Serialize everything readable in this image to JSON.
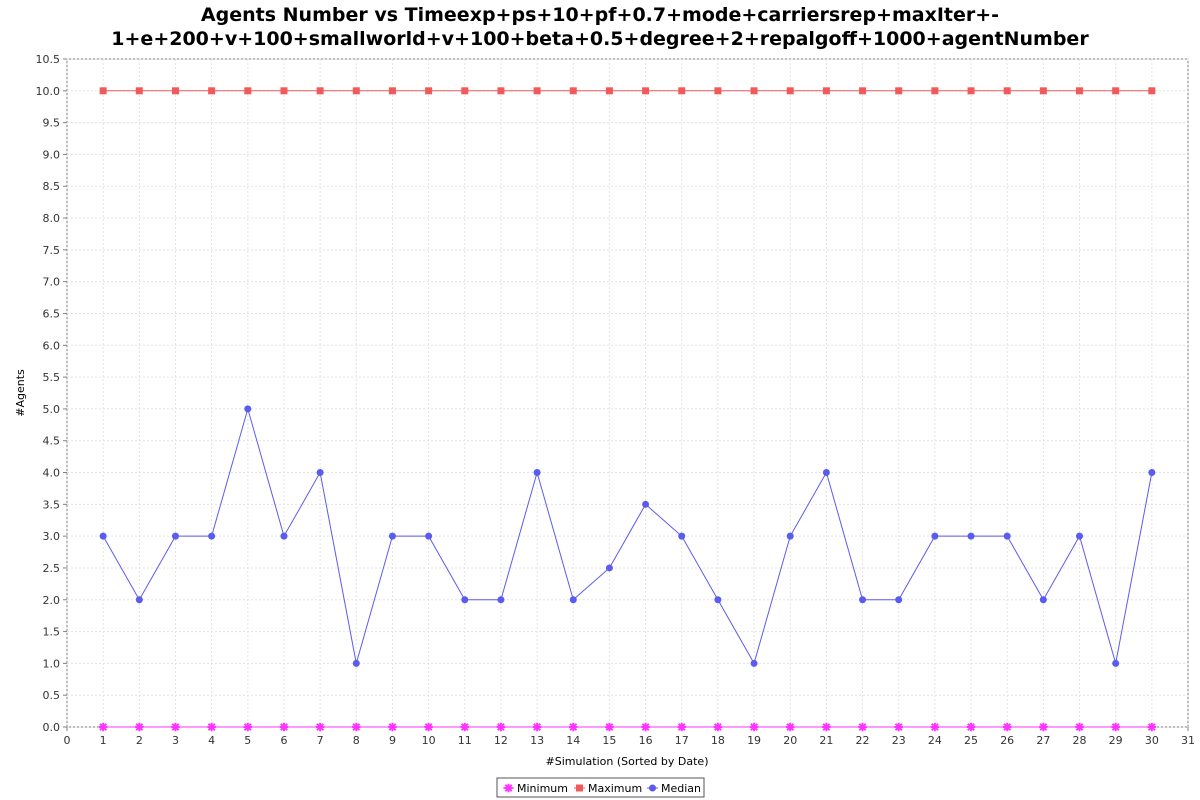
{
  "chart_data": {
    "type": "line",
    "title_line1": "Agents Number vs Timeexp+ps+10+pf+0.7+mode+carriersrep+maxIter+-",
    "title_line2": "1+e+200+v+100+smallworld+v+100+beta+0.5+degree+2+repalgoff+1000+agentNumber",
    "xlabel": "#Simulation (Sorted by Date)",
    "ylabel": "#Agents",
    "xlim": [
      0,
      31
    ],
    "ylim": [
      0,
      10.5
    ],
    "x_ticks": [
      0,
      1,
      2,
      3,
      4,
      5,
      6,
      7,
      8,
      9,
      10,
      11,
      12,
      13,
      14,
      15,
      16,
      17,
      18,
      19,
      20,
      21,
      22,
      23,
      24,
      25,
      26,
      27,
      28,
      29,
      30,
      31
    ],
    "y_ticks": [
      0.0,
      0.5,
      1.0,
      1.5,
      2.0,
      2.5,
      3.0,
      3.5,
      4.0,
      4.5,
      5.0,
      5.5,
      6.0,
      6.5,
      7.0,
      7.5,
      8.0,
      8.5,
      9.0,
      9.5,
      10.0,
      10.5
    ],
    "grid": true,
    "legend_position": "bottom",
    "x": [
      1,
      2,
      3,
      4,
      5,
      6,
      7,
      8,
      9,
      10,
      11,
      12,
      13,
      14,
      15,
      16,
      17,
      18,
      19,
      20,
      21,
      22,
      23,
      24,
      25,
      26,
      27,
      28,
      29,
      30
    ],
    "series": [
      {
        "name": "Minimum",
        "color": "#ff33ff",
        "marker": "x",
        "values": [
          0,
          0,
          0,
          0,
          0,
          0,
          0,
          0,
          0,
          0,
          0,
          0,
          0,
          0,
          0,
          0,
          0,
          0,
          0,
          0,
          0,
          0,
          0,
          0,
          0,
          0,
          0,
          0,
          0,
          0
        ]
      },
      {
        "name": "Maximum",
        "color": "#f05a5a",
        "marker": "square",
        "values": [
          10,
          10,
          10,
          10,
          10,
          10,
          10,
          10,
          10,
          10,
          10,
          10,
          10,
          10,
          10,
          10,
          10,
          10,
          10,
          10,
          10,
          10,
          10,
          10,
          10,
          10,
          10,
          10,
          10,
          10
        ]
      },
      {
        "name": "Median",
        "color": "#5b5bee",
        "marker": "circle",
        "values": [
          3,
          2,
          3,
          3,
          5,
          3,
          4,
          1,
          3,
          3,
          2,
          2,
          4,
          2,
          2.5,
          3.5,
          3,
          2,
          1,
          3,
          4,
          2,
          2,
          3,
          3,
          3,
          2,
          3,
          1,
          4
        ]
      }
    ]
  }
}
